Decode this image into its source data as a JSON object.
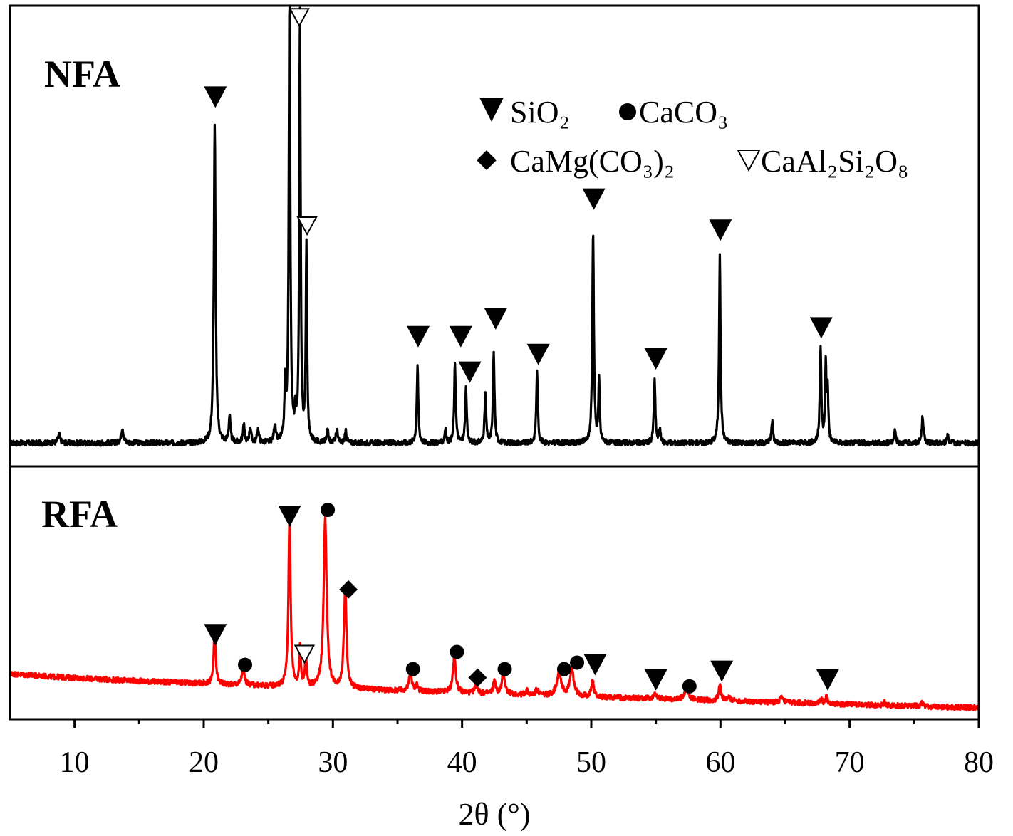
{
  "chart_data": {
    "type": "line",
    "title": "",
    "xlabel": "2θ (°)",
    "ylabel": "",
    "xlim": [
      5,
      80
    ],
    "xticks": [
      10,
      20,
      30,
      40,
      50,
      60,
      70,
      80
    ],
    "xtick_labels": [
      "10",
      "20",
      "30",
      "40",
      "50",
      "60",
      "70",
      "80"
    ],
    "grid": false,
    "legend_position": "top-right",
    "colors": {
      "NFA": "#000000",
      "RFA": "#ff0000"
    },
    "legend": [
      {
        "symbol": "filled-down-triangle",
        "label": "SiO₂"
      },
      {
        "symbol": "filled-circle",
        "label": "CaCO₃"
      },
      {
        "symbol": "filled-diamond",
        "label": "CaMg(CO₃)₂"
      },
      {
        "symbol": "open-down-triangle",
        "label": "CaAl₂Si₂O₈"
      }
    ],
    "series": [
      {
        "name": "NFA",
        "color": "#000000",
        "baseline": 0.03,
        "ylim": [
          0,
          1.0
        ],
        "noise": 0.006,
        "peaks": [
          {
            "x": 8.8,
            "h": 0.02,
            "w": 0.1
          },
          {
            "x": 13.7,
            "h": 0.035,
            "w": 0.1
          },
          {
            "x": 20.85,
            "h": 0.72,
            "w": 0.08
          },
          {
            "x": 22.0,
            "h": 0.06,
            "w": 0.08
          },
          {
            "x": 23.1,
            "h": 0.04,
            "w": 0.08
          },
          {
            "x": 23.6,
            "h": 0.035,
            "w": 0.08
          },
          {
            "x": 24.2,
            "h": 0.03,
            "w": 0.08
          },
          {
            "x": 25.5,
            "h": 0.04,
            "w": 0.08
          },
          {
            "x": 26.3,
            "h": 0.12,
            "w": 0.06
          },
          {
            "x": 26.64,
            "h": 1.0,
            "w": 0.07
          },
          {
            "x": 27.1,
            "h": 0.06,
            "w": 0.06
          },
          {
            "x": 27.45,
            "h": 0.96,
            "w": 0.06
          },
          {
            "x": 27.95,
            "h": 0.44,
            "w": 0.06
          },
          {
            "x": 29.6,
            "h": 0.03,
            "w": 0.08
          },
          {
            "x": 30.3,
            "h": 0.03,
            "w": 0.08
          },
          {
            "x": 31.0,
            "h": 0.025,
            "w": 0.08
          },
          {
            "x": 36.55,
            "h": 0.17,
            "w": 0.07
          },
          {
            "x": 38.7,
            "h": 0.03,
            "w": 0.07
          },
          {
            "x": 39.45,
            "h": 0.18,
            "w": 0.07
          },
          {
            "x": 40.3,
            "h": 0.12,
            "w": 0.07
          },
          {
            "x": 41.8,
            "h": 0.11,
            "w": 0.07
          },
          {
            "x": 42.45,
            "h": 0.2,
            "w": 0.07
          },
          {
            "x": 45.8,
            "h": 0.16,
            "w": 0.07
          },
          {
            "x": 50.14,
            "h": 0.48,
            "w": 0.07
          },
          {
            "x": 50.6,
            "h": 0.14,
            "w": 0.06
          },
          {
            "x": 54.9,
            "h": 0.14,
            "w": 0.07
          },
          {
            "x": 55.3,
            "h": 0.03,
            "w": 0.07
          },
          {
            "x": 59.95,
            "h": 0.42,
            "w": 0.07
          },
          {
            "x": 64.0,
            "h": 0.05,
            "w": 0.08
          },
          {
            "x": 67.75,
            "h": 0.21,
            "w": 0.07
          },
          {
            "x": 68.15,
            "h": 0.17,
            "w": 0.06
          },
          {
            "x": 68.3,
            "h": 0.12,
            "w": 0.06
          },
          {
            "x": 73.5,
            "h": 0.03,
            "w": 0.08
          },
          {
            "x": 75.65,
            "h": 0.06,
            "w": 0.08
          },
          {
            "x": 77.6,
            "h": 0.02,
            "w": 0.08
          }
        ]
      },
      {
        "name": "RFA",
        "color": "#ff0000",
        "baseline_start": 0.18,
        "baseline_end": 0.02,
        "ylim": [
          0,
          1.0
        ],
        "noise": 0.012,
        "peaks": [
          {
            "x": 20.85,
            "h": 0.26,
            "w": 0.09
          },
          {
            "x": 23.05,
            "h": 0.08,
            "w": 0.12
          },
          {
            "x": 26.64,
            "h": 0.78,
            "w": 0.1
          },
          {
            "x": 27.45,
            "h": 0.19,
            "w": 0.07
          },
          {
            "x": 27.9,
            "h": 0.17,
            "w": 0.07
          },
          {
            "x": 29.4,
            "h": 0.79,
            "w": 0.14
          },
          {
            "x": 30.95,
            "h": 0.46,
            "w": 0.12
          },
          {
            "x": 36.0,
            "h": 0.09,
            "w": 0.12
          },
          {
            "x": 36.5,
            "h": 0.03,
            "w": 0.1
          },
          {
            "x": 39.4,
            "h": 0.17,
            "w": 0.13
          },
          {
            "x": 41.1,
            "h": 0.05,
            "w": 0.1
          },
          {
            "x": 42.5,
            "h": 0.06,
            "w": 0.1
          },
          {
            "x": 43.2,
            "h": 0.1,
            "w": 0.13
          },
          {
            "x": 45.0,
            "h": 0.02,
            "w": 0.1
          },
          {
            "x": 45.8,
            "h": 0.03,
            "w": 0.1
          },
          {
            "x": 47.5,
            "h": 0.11,
            "w": 0.2
          },
          {
            "x": 48.5,
            "h": 0.12,
            "w": 0.18
          },
          {
            "x": 50.1,
            "h": 0.08,
            "w": 0.1
          },
          {
            "x": 54.9,
            "h": 0.03,
            "w": 0.1
          },
          {
            "x": 57.4,
            "h": 0.05,
            "w": 0.18
          },
          {
            "x": 59.95,
            "h": 0.08,
            "w": 0.1
          },
          {
            "x": 60.7,
            "h": 0.015,
            "w": 0.15
          },
          {
            "x": 64.7,
            "h": 0.02,
            "w": 0.15
          },
          {
            "x": 67.8,
            "h": 0.02,
            "w": 0.1
          },
          {
            "x": 68.2,
            "h": 0.03,
            "w": 0.1
          },
          {
            "x": 72.7,
            "h": 0.015,
            "w": 0.1
          },
          {
            "x": 75.6,
            "h": 0.015,
            "w": 0.1
          }
        ]
      }
    ],
    "annotations": [
      {
        "series": "NFA",
        "label": "NFA"
      },
      {
        "series": "RFA",
        "label": "RFA"
      }
    ],
    "peak_markers": [
      {
        "series": "NFA",
        "x": 20.9,
        "y": 0.81,
        "symbol": "filled-down-triangle"
      },
      {
        "series": "NFA",
        "x": 26.65,
        "y": 1.08,
        "symbol": "filled-down-triangle"
      },
      {
        "series": "NFA",
        "x": 27.4,
        "y": 0.99,
        "symbol": "open-down-triangle"
      },
      {
        "series": "NFA",
        "x": 28.0,
        "y": 0.52,
        "symbol": "open-down-triangle"
      },
      {
        "series": "NFA",
        "x": 36.6,
        "y": 0.27,
        "symbol": "filled-down-triangle"
      },
      {
        "series": "NFA",
        "x": 39.9,
        "y": 0.27,
        "symbol": "filled-down-triangle"
      },
      {
        "series": "NFA",
        "x": 40.6,
        "y": 0.19,
        "symbol": "filled-down-triangle"
      },
      {
        "series": "NFA",
        "x": 42.6,
        "y": 0.31,
        "symbol": "filled-down-triangle"
      },
      {
        "series": "NFA",
        "x": 45.9,
        "y": 0.23,
        "symbol": "filled-down-triangle"
      },
      {
        "series": "NFA",
        "x": 50.2,
        "y": 0.58,
        "symbol": "filled-down-triangle"
      },
      {
        "series": "NFA",
        "x": 55.0,
        "y": 0.22,
        "symbol": "filled-down-triangle"
      },
      {
        "series": "NFA",
        "x": 60.0,
        "y": 0.51,
        "symbol": "filled-down-triangle"
      },
      {
        "series": "NFA",
        "x": 67.8,
        "y": 0.29,
        "symbol": "filled-down-triangle"
      },
      {
        "series": "RFA",
        "x": 20.9,
        "y": 0.36,
        "symbol": "filled-down-triangle"
      },
      {
        "series": "RFA",
        "x": 23.2,
        "y": 0.22,
        "symbol": "filled-circle"
      },
      {
        "series": "RFA",
        "x": 26.65,
        "y": 0.91,
        "symbol": "filled-down-triangle"
      },
      {
        "series": "RFA",
        "x": 27.8,
        "y": 0.27,
        "symbol": "open-down-triangle"
      },
      {
        "series": "RFA",
        "x": 29.6,
        "y": 0.94,
        "symbol": "filled-circle"
      },
      {
        "series": "RFA",
        "x": 31.2,
        "y": 0.57,
        "symbol": "filled-diamond"
      },
      {
        "series": "RFA",
        "x": 36.2,
        "y": 0.2,
        "symbol": "filled-circle"
      },
      {
        "series": "RFA",
        "x": 39.6,
        "y": 0.28,
        "symbol": "filled-circle"
      },
      {
        "series": "RFA",
        "x": 41.2,
        "y": 0.16,
        "symbol": "filled-diamond"
      },
      {
        "series": "RFA",
        "x": 43.3,
        "y": 0.2,
        "symbol": "filled-circle"
      },
      {
        "series": "RFA",
        "x": 47.9,
        "y": 0.2,
        "symbol": "filled-circle"
      },
      {
        "series": "RFA",
        "x": 48.9,
        "y": 0.23,
        "symbol": "filled-circle"
      },
      {
        "series": "RFA",
        "x": 50.3,
        "y": 0.22,
        "symbol": "filled-down-triangle"
      },
      {
        "series": "RFA",
        "x": 55.0,
        "y": 0.15,
        "symbol": "filled-down-triangle"
      },
      {
        "series": "RFA",
        "x": 57.6,
        "y": 0.12,
        "symbol": "filled-circle"
      },
      {
        "series": "RFA",
        "x": 60.1,
        "y": 0.19,
        "symbol": "filled-down-triangle"
      },
      {
        "series": "RFA",
        "x": 68.3,
        "y": 0.15,
        "symbol": "filled-down-triangle"
      }
    ]
  }
}
